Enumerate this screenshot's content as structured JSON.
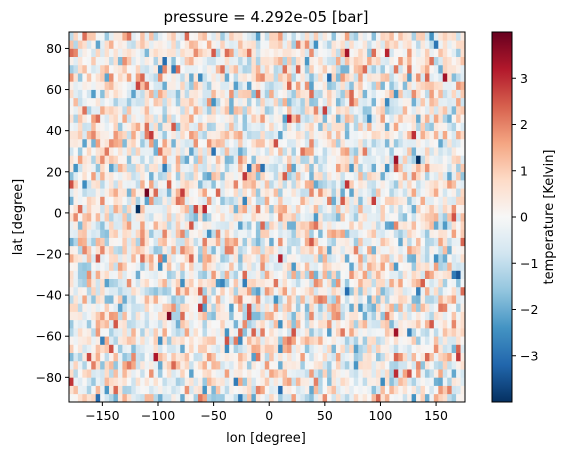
{
  "chart_data": {
    "type": "heatmap",
    "title": "pressure = 4.292e-05 [bar]",
    "xlabel": "lon [degree]",
    "ylabel": "lat [degree]",
    "xlim": [
      -180,
      176
    ],
    "ylim": [
      -92,
      88
    ],
    "x_ticks": [
      -150,
      -100,
      -50,
      0,
      50,
      100,
      150
    ],
    "y_ticks": [
      -80,
      -60,
      -40,
      -20,
      0,
      20,
      40,
      60,
      80
    ],
    "grid": false,
    "colormap": "RdBu_r",
    "colorbar": {
      "label": "temperature [Kelvin]",
      "vmin": -4,
      "vmax": 4,
      "ticks": [
        -3,
        -2,
        -1,
        0,
        1,
        2,
        3
      ]
    },
    "cell_size": {
      "lon_deg": 4,
      "lat_deg": 4
    },
    "description_of_values": "random temperature anomalies approximately between -4 and 4 K on a 4x4 degree lon/lat grid"
  },
  "colors": {
    "cmap_stops": [
      "#053061",
      "#2166ac",
      "#4393c3",
      "#92c5de",
      "#d1e5f0",
      "#f7f7f7",
      "#fddbc7",
      "#f4a582",
      "#d6604d",
      "#b2182b",
      "#67001f"
    ]
  }
}
